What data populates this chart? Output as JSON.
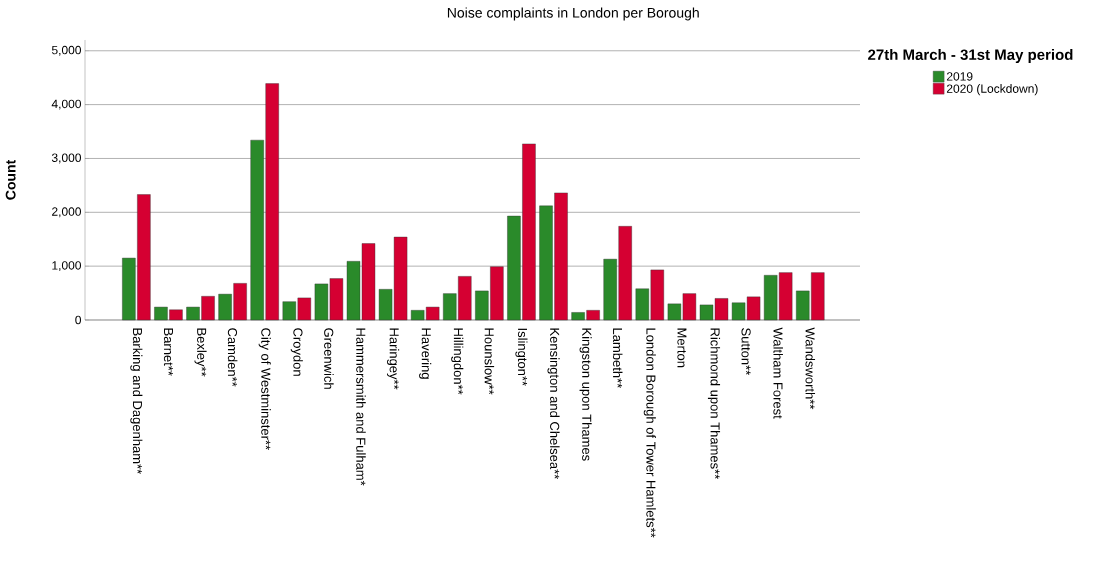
{
  "chart_data": {
    "type": "bar",
    "title": "Noise complaints in London per Borough",
    "ylabel": "Count",
    "legend_title": "27th March - 31st May period",
    "categories": [
      "Barking and Dagenham**",
      "Barnet**",
      "Bexley**",
      "Camden**",
      "City of Westminster**",
      "Croydon",
      "Greenwich",
      "Hammersmith and Fulham*",
      "Haringey**",
      "Havering",
      "Hillingdon**",
      "Hounslow**",
      "Islington**",
      "Kensington and Chelsea**",
      "Kingston upon Thames",
      "Lambeth**",
      "London Borough of Tower Hamlets**",
      "Merton",
      "Richmond upon Thames**",
      "Sutton**",
      "Waltham Forest",
      "Wandsworth**"
    ],
    "series": [
      {
        "name": "2019",
        "color": "#2a8a2a",
        "values": [
          1150,
          240,
          240,
          480,
          3340,
          340,
          670,
          1090,
          570,
          180,
          490,
          540,
          1930,
          2120,
          140,
          1130,
          580,
          300,
          280,
          320,
          830,
          540
        ]
      },
      {
        "name": "2020 (Lockdown)",
        "color": "#d50032",
        "values": [
          2330,
          190,
          440,
          680,
          4390,
          410,
          770,
          1420,
          1540,
          240,
          810,
          990,
          3270,
          2360,
          180,
          1740,
          930,
          490,
          400,
          430,
          880,
          880
        ]
      }
    ],
    "ylim": [
      0,
      5200
    ],
    "yticks": [
      0,
      {
        "value": 1000,
        "label": "1,000"
      },
      {
        "value": 2000,
        "label": "2,000"
      },
      {
        "value": 3000,
        "label": "3,000"
      },
      {
        "value": 4000,
        "label": "4,000"
      },
      {
        "value": 5000,
        "label": "5,000"
      }
    ],
    "grid": "y",
    "legend": "top right"
  }
}
